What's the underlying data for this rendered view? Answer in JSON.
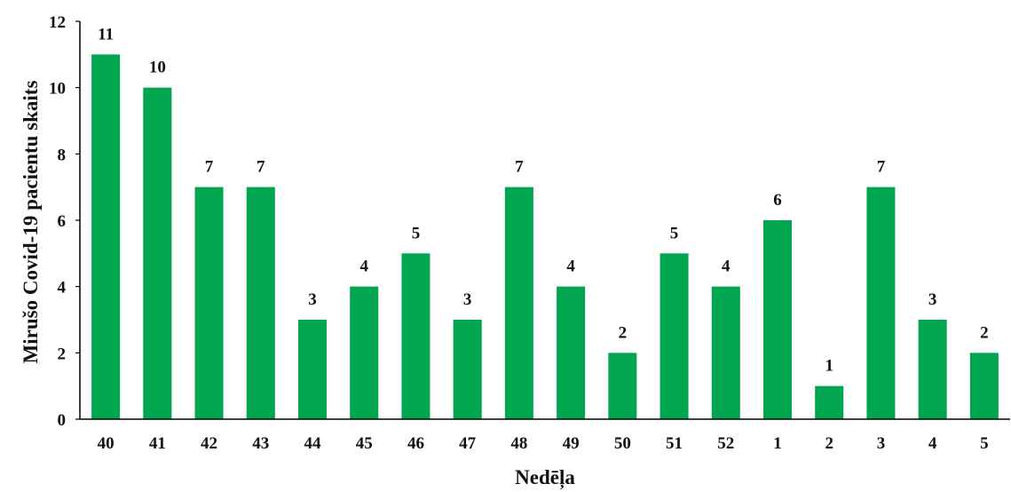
{
  "chart_data": {
    "type": "bar",
    "categories": [
      "40",
      "41",
      "42",
      "43",
      "44",
      "45",
      "46",
      "47",
      "48",
      "49",
      "50",
      "51",
      "52",
      "1",
      "2",
      "3",
      "4",
      "5"
    ],
    "values": [
      11,
      10,
      7,
      7,
      3,
      4,
      5,
      3,
      7,
      4,
      2,
      5,
      4,
      6,
      1,
      7,
      3,
      2
    ],
    "title": "",
    "xlabel": "Nedēļa",
    "ylabel": "Mirušo Covid-19 pacientu skaits",
    "ylim": [
      0,
      12
    ],
    "yticks": [
      0,
      2,
      4,
      6,
      8,
      10,
      12
    ],
    "grid": false,
    "legend": "none",
    "data_labels": true,
    "colors": {
      "bar": "#00A550",
      "axis": "#000000",
      "text": "#111111"
    }
  }
}
